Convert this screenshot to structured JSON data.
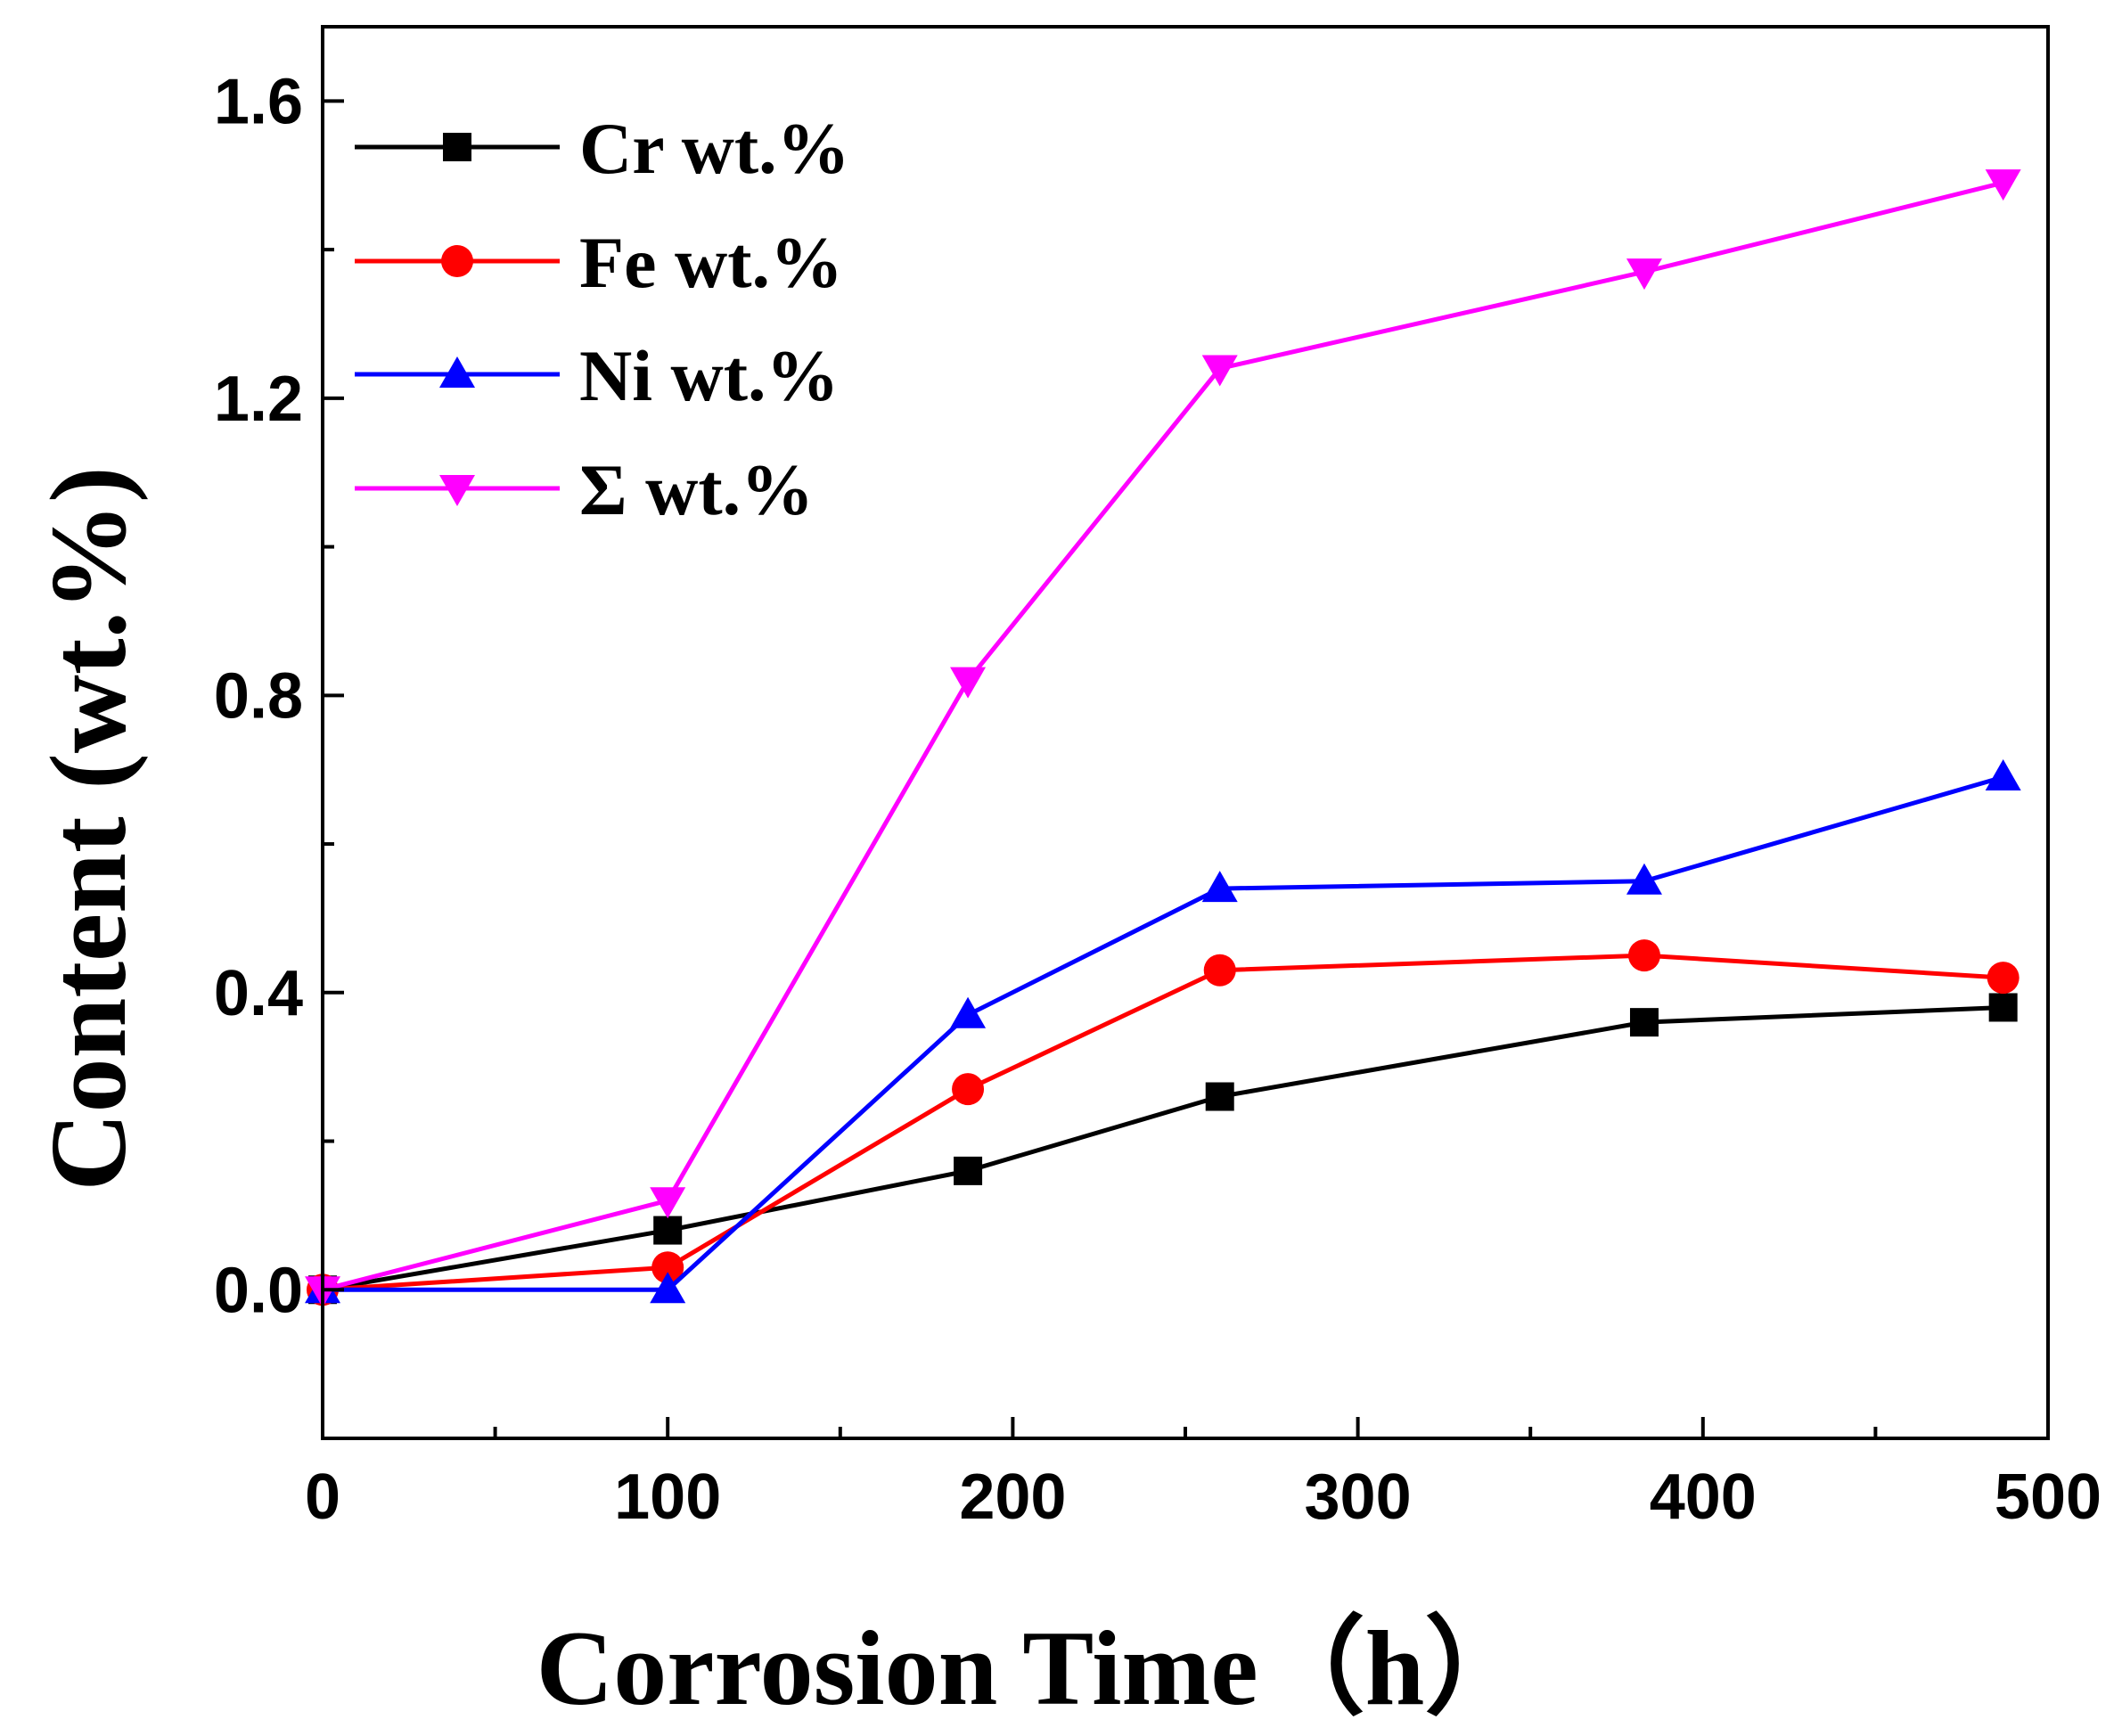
{
  "chart_data": {
    "type": "line",
    "xlabel": "Corrosion Time（h）",
    "ylabel": "Content (wt.%)",
    "xlim": [
      0,
      500
    ],
    "ylim": [
      -0.2,
      1.7
    ],
    "x_ticks": [
      0,
      100,
      200,
      300,
      400,
      500
    ],
    "x_tick_labels": [
      "0",
      "100",
      "200",
      "300",
      "400",
      "500"
    ],
    "y_ticks": [
      0.0,
      0.4,
      0.8,
      1.2,
      1.6
    ],
    "y_tick_labels": [
      "0.0",
      "0.4",
      "0.8",
      "1.2",
      "1.6"
    ],
    "grid": false,
    "legend_position": "top-left",
    "x": [
      0,
      100,
      187,
      260,
      383,
      487
    ],
    "series": [
      {
        "name": "Cr wt.%",
        "color": "#000000",
        "marker": "square",
        "values": [
          0.0,
          0.08,
          0.16,
          0.26,
          0.36,
          0.38
        ]
      },
      {
        "name": "Fe wt.%",
        "color": "#ff0000",
        "marker": "circle",
        "values": [
          0.0,
          0.03,
          0.27,
          0.43,
          0.45,
          0.42
        ]
      },
      {
        "name": "Ni wt.%",
        "color": "#0000ff",
        "marker": "triangle-up",
        "values": [
          0.0,
          0.0,
          0.37,
          0.54,
          0.55,
          0.69
        ]
      },
      {
        "name": "Σ  wt.%",
        "color": "#ff00ff",
        "marker": "triangle-down",
        "values": [
          0.0,
          0.12,
          0.82,
          1.24,
          1.37,
          1.49
        ]
      }
    ]
  }
}
